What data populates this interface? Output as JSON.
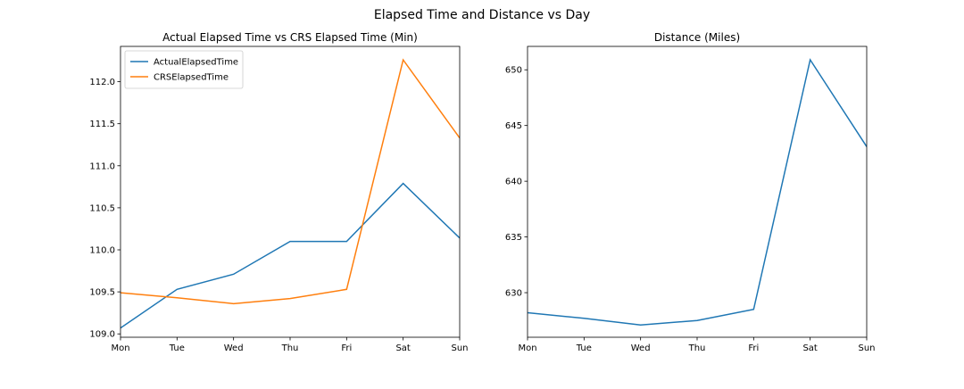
{
  "figure": {
    "suptitle": "Elapsed Time and Distance vs Day"
  },
  "chart_data": [
    {
      "type": "line",
      "title": "Actual Elapsed Time vs CRS Elapsed Time (Min)",
      "xlabel": "",
      "ylabel": "",
      "categories": [
        "Mon",
        "Tue",
        "Wed",
        "Thu",
        "Fri",
        "Sat",
        "Sun"
      ],
      "series": [
        {
          "name": "ActualElapsedTime",
          "color": "#1f77b4",
          "values": [
            109.07,
            109.53,
            109.71,
            110.1,
            110.1,
            110.79,
            110.14
          ]
        },
        {
          "name": "CRSElapsedTime",
          "color": "#ff7f0e",
          "values": [
            109.49,
            109.43,
            109.36,
            109.42,
            109.53,
            112.26,
            111.33
          ]
        }
      ],
      "ylim": [
        108.96,
        112.42
      ],
      "yticks": [
        "109.0",
        "109.5",
        "110.0",
        "110.5",
        "111.0",
        "111.5",
        "112.0"
      ],
      "legend": "upper-left",
      "grid": false
    },
    {
      "type": "line",
      "title": "Distance (Miles)",
      "xlabel": "",
      "ylabel": "",
      "categories": [
        "Mon",
        "Tue",
        "Wed",
        "Thu",
        "Fri",
        "Sat",
        "Sun"
      ],
      "series": [
        {
          "color": "#1f77b4",
          "values": [
            628.2,
            627.7,
            627.1,
            627.5,
            628.5,
            650.9,
            643.1
          ]
        }
      ],
      "ylim": [
        626.0,
        652.1
      ],
      "yticks": [
        "630",
        "635",
        "640",
        "645",
        "650"
      ],
      "legend": "none",
      "grid": false
    }
  ]
}
